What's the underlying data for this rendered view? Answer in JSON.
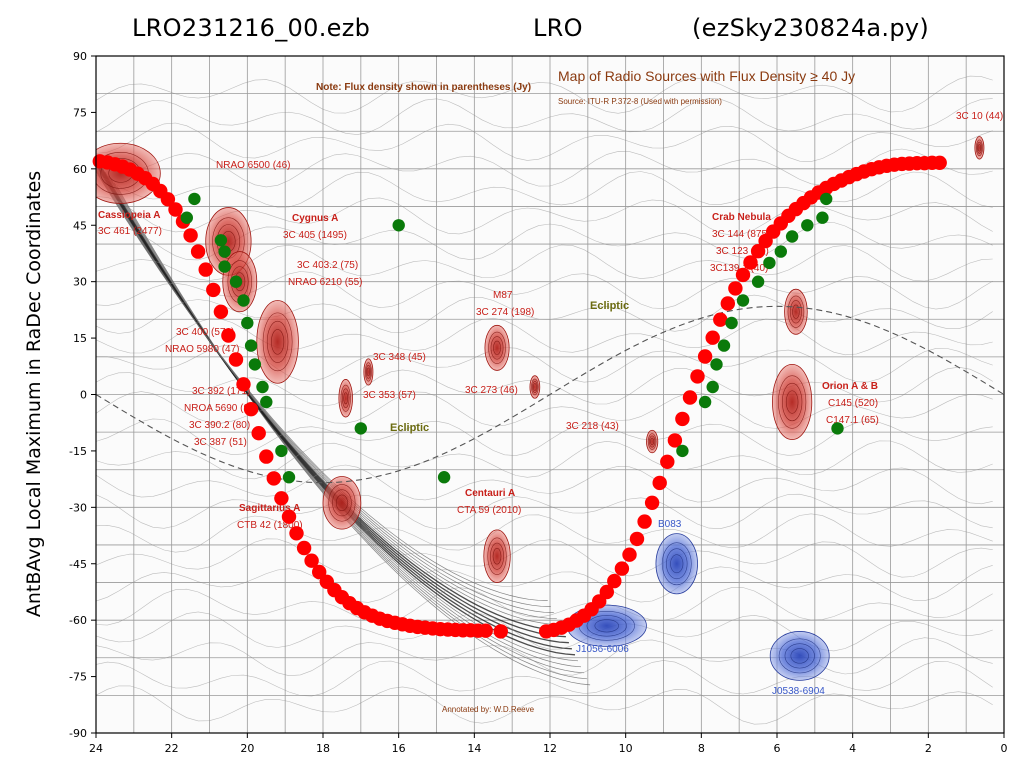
{
  "header": {
    "file": "LRO231216_00.ezb",
    "site": "LRO",
    "program": "(ezSky230824a.py)"
  },
  "background_map": {
    "title": "Map of Radio Sources with Flux Density ≥ 40 Jy",
    "source": "Source: ITU-R P.372-8 (Used with permission)",
    "note": "Note: Flux density shown in parentheses (Jy)",
    "credit": "Annotated by: W.D.Reeve",
    "ecliptic_label": "Ecliptic",
    "labels": [
      {
        "text": "Cassiopeia A",
        "style": "bold"
      },
      {
        "text": "3C 461 (2477)",
        "style": "normal"
      },
      {
        "text": "NRAO 6500 (46)",
        "style": "normal"
      },
      {
        "text": "Cygnus A",
        "style": "bold"
      },
      {
        "text": "3C 405 (1495)",
        "style": "normal"
      },
      {
        "text": "3C 403.2 (75)",
        "style": "normal"
      },
      {
        "text": "NRAO 6210 (55)",
        "style": "normal"
      },
      {
        "text": "3C 400 (576)",
        "style": "normal"
      },
      {
        "text": "NRAO 5980 (47)",
        "style": "normal"
      },
      {
        "text": "3C 392 (171)",
        "style": "normal"
      },
      {
        "text": "NROA 5690 (90)",
        "style": "normal"
      },
      {
        "text": "3C 390.2 (80)",
        "style": "normal"
      },
      {
        "text": "3C 387 (51)",
        "style": "normal"
      },
      {
        "text": "Sagittarius A",
        "style": "bold"
      },
      {
        "text": "CTB 42 (1800)",
        "style": "normal"
      },
      {
        "text": "3C 348 (45)",
        "style": "normal"
      },
      {
        "text": "3C 353 (57)",
        "style": "normal"
      },
      {
        "text": "M87",
        "style": "normal"
      },
      {
        "text": "3C 274 (198)",
        "style": "normal"
      },
      {
        "text": "3C 273 (46)",
        "style": "normal"
      },
      {
        "text": "Centauri A",
        "style": "bold"
      },
      {
        "text": "CTA 59 (2010)",
        "style": "normal"
      },
      {
        "text": "3C 218 (43)",
        "style": "normal"
      },
      {
        "text": "Crab Nebula",
        "style": "bold"
      },
      {
        "text": "3C 144 (875)",
        "style": "normal"
      },
      {
        "text": "3C 123 (47)",
        "style": "normal"
      },
      {
        "text": "3C139.1 (40)",
        "style": "normal"
      },
      {
        "text": "Orion A & B",
        "style": "bold"
      },
      {
        "text": "C145 (520)",
        "style": "normal"
      },
      {
        "text": "C147.1 (65)",
        "style": "normal"
      },
      {
        "text": "3C 10 (44)",
        "style": "normal"
      },
      {
        "text": "B083",
        "style": "blue"
      },
      {
        "text": "J1056-6006",
        "style": "blue"
      },
      {
        "text": "J0538-6904",
        "style": "blue"
      }
    ]
  },
  "colors": {
    "red_series": "#ff0000",
    "green_series": "#0a7a0a",
    "source_red": "#c8201a",
    "source_blue": "#3757c8",
    "contour": "#555555",
    "grid": "#999999"
  },
  "chart_data": {
    "type": "scatter",
    "ylabel": "AntBAvg Local Maximum in RaDec Coordinates",
    "xlabel": "",
    "xlim": [
      24,
      0
    ],
    "ylim": [
      -90,
      90
    ],
    "xticks": [
      24,
      22,
      20,
      18,
      16,
      14,
      12,
      10,
      8,
      6,
      4,
      2,
      0
    ],
    "yticks": [
      90,
      75,
      60,
      45,
      30,
      15,
      0,
      -15,
      -30,
      -45,
      -60,
      -75,
      -90
    ],
    "series": [
      {
        "name": "",
        "color": "red",
        "marker": "circle",
        "x": [
          23.9,
          23.7,
          23.5,
          23.3,
          23.1,
          22.9,
          22.7,
          22.5,
          22.3,
          22.1,
          21.9,
          21.7,
          21.5,
          21.3,
          21.1,
          20.9,
          20.7,
          20.5,
          20.3,
          20.1,
          19.9,
          19.7,
          19.5,
          19.3,
          19.1,
          18.9,
          18.7,
          18.5,
          18.3,
          18.1,
          17.9,
          17.7,
          17.5,
          17.3,
          17.1,
          16.9,
          16.7,
          16.5,
          16.3,
          16.1,
          15.9,
          15.7,
          15.5,
          15.3,
          15.1,
          14.9,
          14.7,
          14.5,
          14.3,
          14.1,
          13.9,
          13.7,
          13.3,
          12.1,
          11.9,
          11.7,
          11.5,
          11.3,
          11.1,
          10.9,
          10.7,
          10.5,
          10.3,
          10.1,
          9.9,
          9.7,
          9.5,
          9.3,
          9.1,
          8.9,
          8.7,
          8.5,
          8.3,
          8.1,
          7.9,
          7.7,
          7.5,
          7.3,
          7.1,
          6.9,
          6.7,
          6.5,
          6.3,
          6.1,
          5.9,
          5.7,
          5.5,
          5.3,
          5.1,
          4.9,
          4.7,
          4.5,
          4.3,
          4.1,
          3.9,
          3.7,
          3.5,
          3.3,
          3.1,
          2.9,
          2.7,
          2.5,
          2.3,
          2.1,
          1.9,
          1.7
        ],
        "y": [
          62.0,
          61.7,
          61.2,
          60.6,
          59.8,
          58.7,
          57.5,
          56.0,
          54.1,
          51.9,
          49.2,
          46.0,
          42.3,
          38.0,
          33.2,
          27.8,
          22.0,
          15.7,
          9.3,
          2.7,
          -3.9,
          -10.3,
          -16.5,
          -22.3,
          -27.6,
          -32.5,
          -36.9,
          -40.8,
          -44.2,
          -47.2,
          -49.8,
          -52.0,
          -53.9,
          -55.5,
          -56.8,
          -57.9,
          -58.8,
          -59.6,
          -60.2,
          -60.7,
          -61.1,
          -61.5,
          -61.8,
          -62.0,
          -62.2,
          -62.4,
          -62.5,
          -62.6,
          -62.7,
          -62.7,
          -62.8,
          -62.8,
          -63.0,
          -63.0,
          -62.6,
          -62.0,
          -61.2,
          -60.1,
          -58.8,
          -57.1,
          -55.0,
          -52.5,
          -49.6,
          -46.3,
          -42.6,
          -38.4,
          -33.8,
          -28.8,
          -23.5,
          -17.9,
          -12.2,
          -6.5,
          -0.8,
          4.8,
          10.1,
          15.1,
          19.9,
          24.2,
          28.2,
          31.8,
          35.1,
          38.1,
          40.8,
          43.3,
          45.5,
          47.5,
          49.3,
          50.9,
          52.4,
          53.7,
          54.9,
          56.0,
          56.9,
          57.8,
          58.6,
          59.3,
          59.9,
          60.4,
          60.8,
          61.1,
          61.3,
          61.4,
          61.5,
          61.5,
          61.6,
          61.6
        ]
      },
      {
        "name": "",
        "color": "green",
        "marker": "circle",
        "x": [
          21.4,
          21.6,
          20.7,
          20.6,
          20.6,
          20.3,
          20.1,
          20.0,
          19.9,
          19.8,
          19.6,
          19.5,
          19.1,
          18.9,
          17.0,
          16.0,
          14.8,
          8.5,
          7.9,
          7.7,
          7.6,
          7.4,
          7.2,
          6.9,
          6.5,
          6.2,
          5.9,
          5.6,
          5.2,
          4.8,
          4.7,
          4.4
        ],
        "y": [
          52.0,
          47.0,
          41.0,
          38.0,
          34.0,
          30.0,
          25.0,
          19.0,
          13.0,
          8.0,
          2.0,
          -2.0,
          -15.0,
          -22.0,
          -9.0,
          45.0,
          -22.0,
          -15.0,
          -2.0,
          2.0,
          8.0,
          13.0,
          19.0,
          25.0,
          30.0,
          35.0,
          38.0,
          42.0,
          45.0,
          47.0,
          52.0,
          -9.0
        ]
      }
    ]
  }
}
